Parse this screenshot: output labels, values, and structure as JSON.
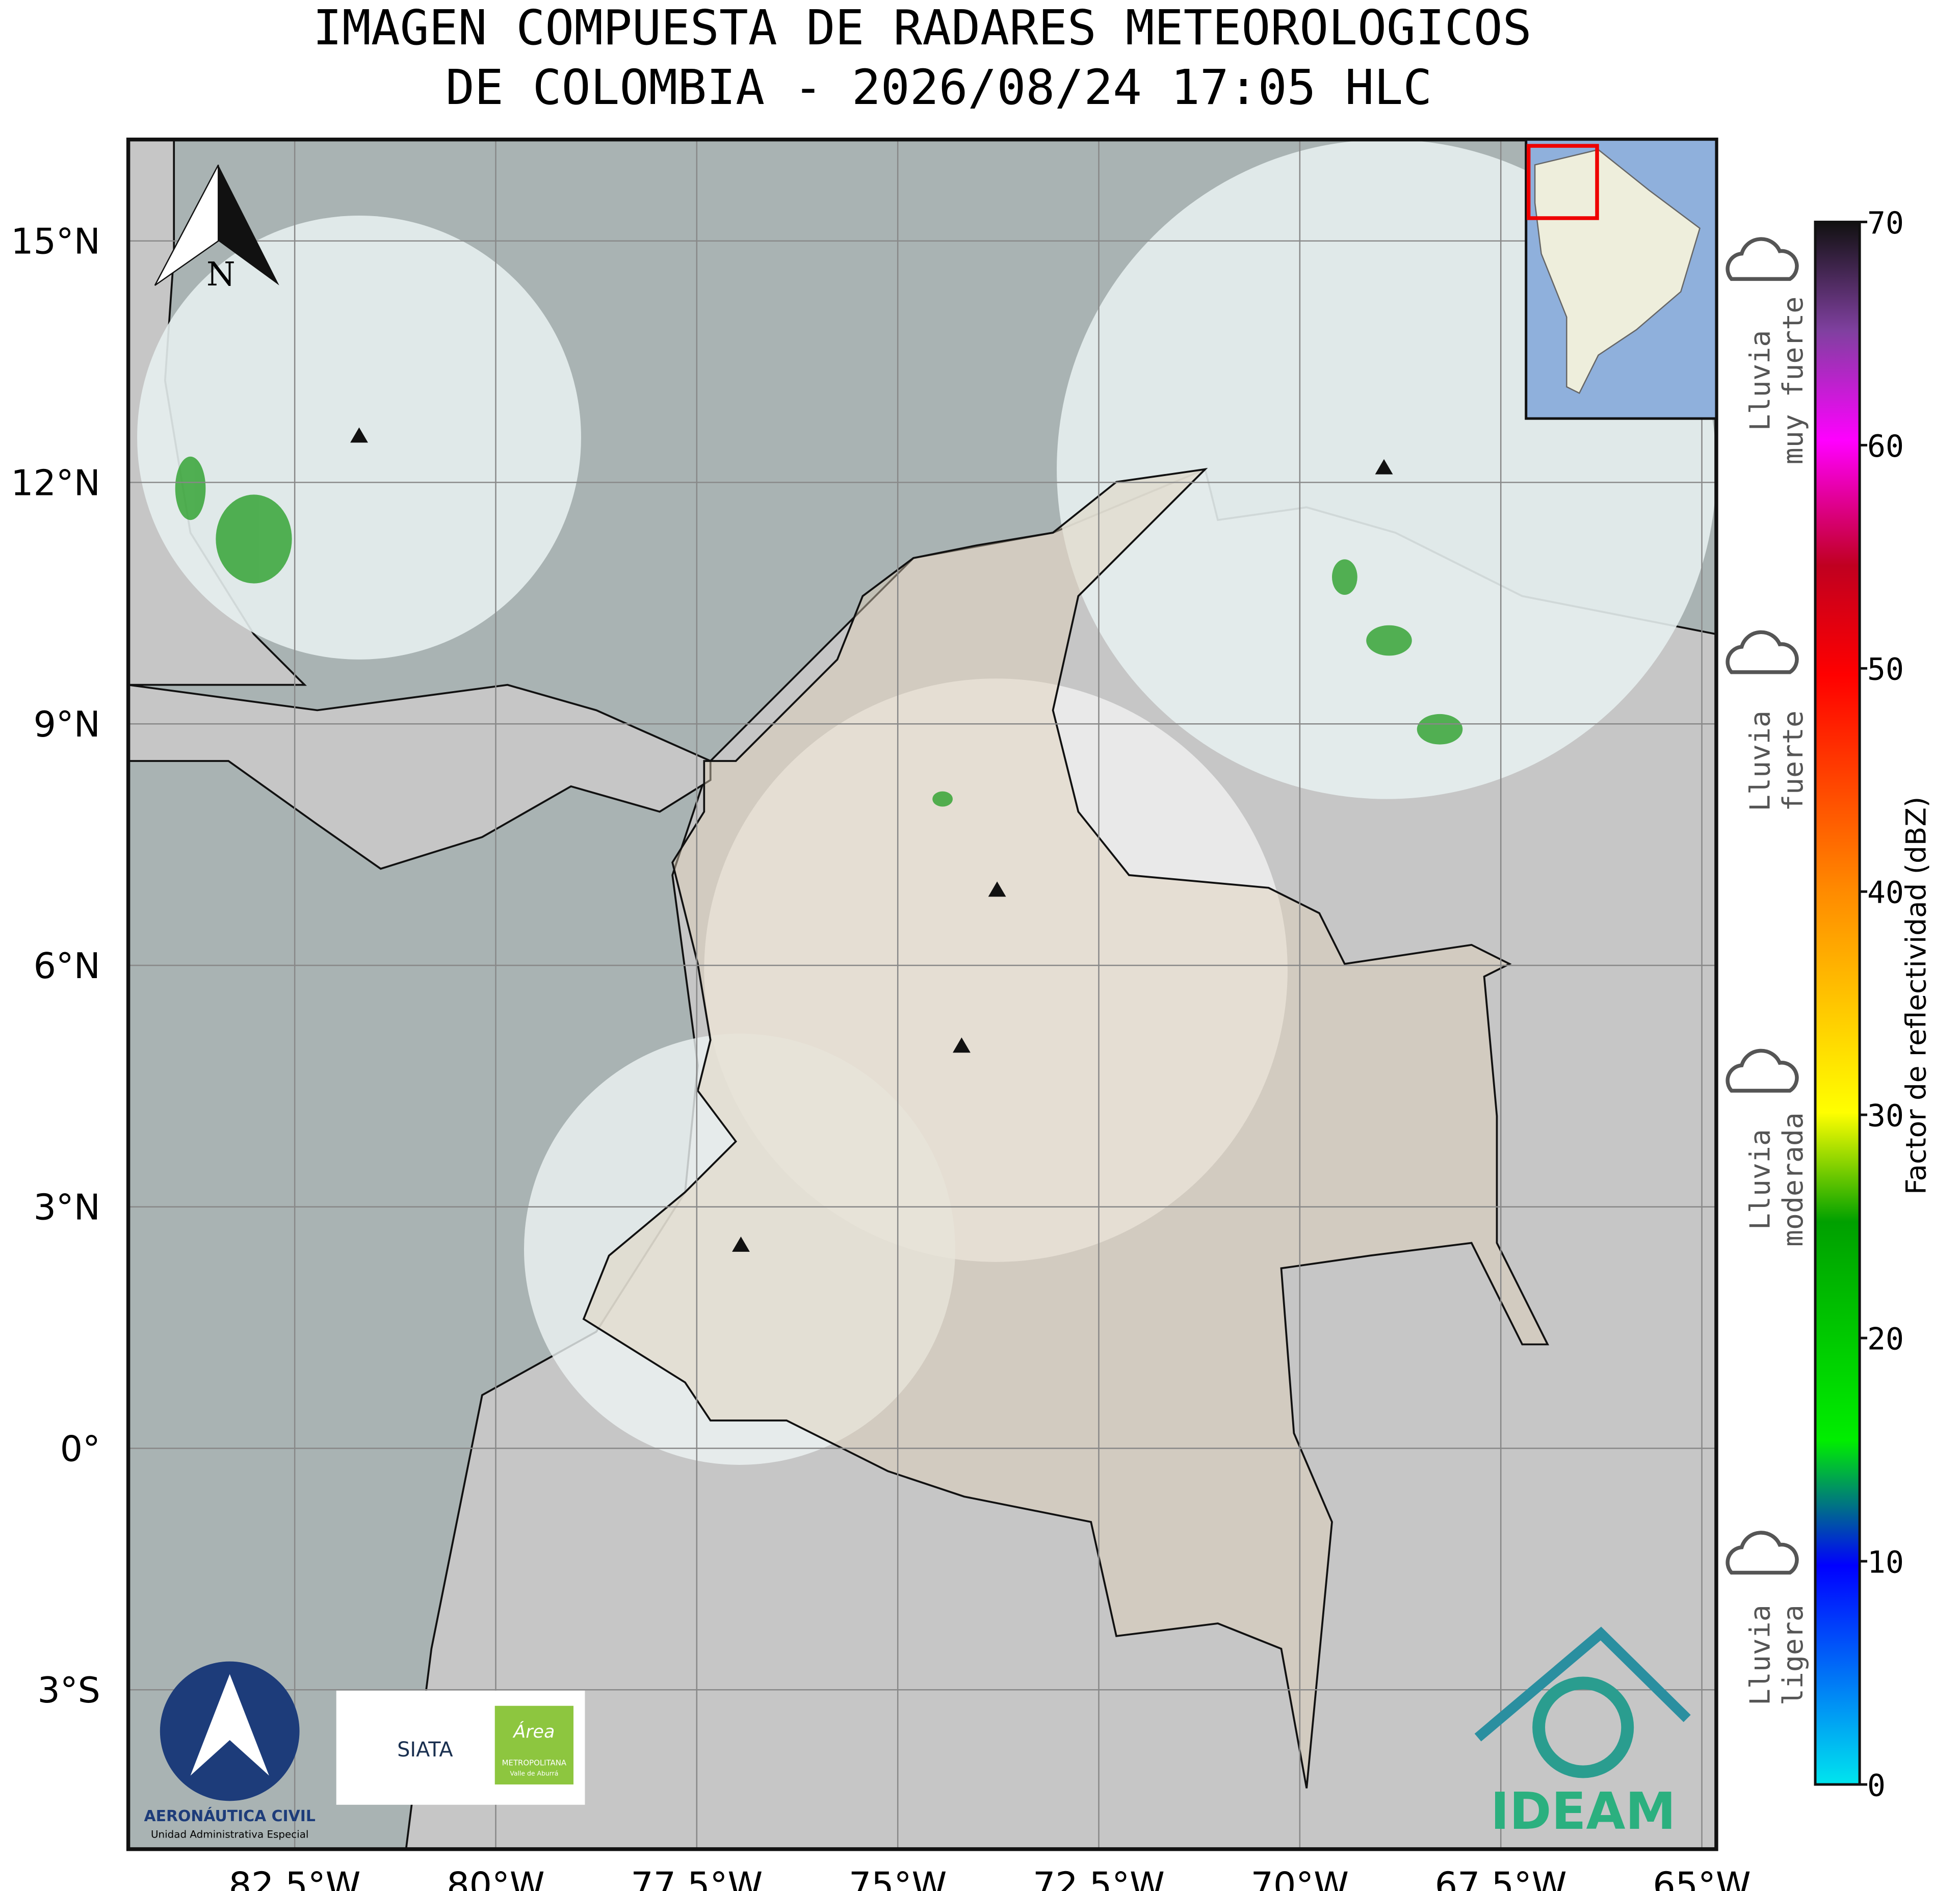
{
  "map": {
    "title": [
      "IMAGEN COMPUESTA DE RADARES METEOROLOGICOS",
      "DE COLOMBIA - 2026/08/24 17:05 HLC"
    ],
    "north_label": "N",
    "xlim": [
      -84.57,
      -64.82
    ],
    "ylim": [
      -4.98,
      16.26
    ],
    "xticks": [
      {
        "value": -82.5,
        "label": "82.5°W"
      },
      {
        "value": -80,
        "label": "80°W"
      },
      {
        "value": -77.5,
        "label": "77.5°W"
      },
      {
        "value": -75,
        "label": "75°W"
      },
      {
        "value": -72.5,
        "label": "72.5°W"
      },
      {
        "value": -70,
        "label": "70°W"
      },
      {
        "value": -67.5,
        "label": "67.5°W"
      },
      {
        "value": -65,
        "label": "65°W"
      }
    ],
    "yticks": [
      {
        "value": 15,
        "label": "15°N"
      },
      {
        "value": 12,
        "label": "12°N"
      },
      {
        "value": 9,
        "label": "9°N"
      },
      {
        "value": 6,
        "label": "6°N"
      },
      {
        "value": 3,
        "label": "3°N"
      },
      {
        "value": 0,
        "label": "0°"
      },
      {
        "value": -3,
        "label": "3°S"
      }
    ],
    "grid": true,
    "colorbar": {
      "label": "Factor de reflectividad (dBZ)",
      "lim": [
        0,
        70
      ],
      "ticks": [
        0,
        10,
        20,
        30,
        40,
        50,
        60,
        70
      ]
    },
    "rain_labels": [
      [
        "Lluvia",
        "muy fuerte"
      ],
      [
        "Lluvia",
        "fuerte"
      ],
      [
        "Lluvia",
        "moderada"
      ],
      [
        "Lluvia",
        "ligera"
      ]
    ],
    "logos": {
      "aerocivil": "AERONÁUTICA CIVIL",
      "aerocivil_sub": "Unidad Administrativa Especial",
      "siata": "SIATA",
      "area": "Área",
      "area_sub": "METROPOLITANA",
      "area_sub2": "Valle de Aburrá",
      "ideam": "IDEAM"
    }
  }
}
